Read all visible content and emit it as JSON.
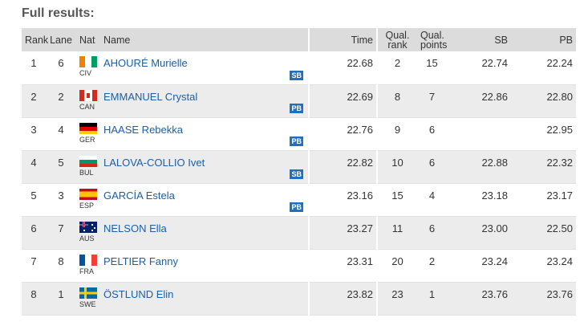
{
  "header": {
    "title": "Full results:"
  },
  "table": {
    "columns": [
      "Rank",
      "Lane",
      "Nat",
      "Name",
      "Time",
      "Qual. rank",
      "Qual. points",
      "SB",
      "PB"
    ],
    "rows": [
      {
        "rank": "1",
        "lane": "6",
        "nat": "CIV",
        "name": "AHOURÉ Murielle",
        "badge": "SB",
        "time": "22.68",
        "qual_rank": "2",
        "qual_points": "15",
        "sb": "22.74",
        "pb": "22.24"
      },
      {
        "rank": "2",
        "lane": "2",
        "nat": "CAN",
        "name": "EMMANUEL Crystal",
        "badge": "PB",
        "time": "22.69",
        "qual_rank": "8",
        "qual_points": "7",
        "sb": "22.86",
        "pb": "22.80"
      },
      {
        "rank": "3",
        "lane": "4",
        "nat": "GER",
        "name": "HAASE Rebekka",
        "badge": "PB",
        "time": "22.76",
        "qual_rank": "9",
        "qual_points": "6",
        "sb": null,
        "pb": "22.95"
      },
      {
        "rank": "4",
        "lane": "5",
        "nat": "BUL",
        "name": "LALOVA-COLLIO Ivet",
        "badge": "SB",
        "time": "22.82",
        "qual_rank": "10",
        "qual_points": "6",
        "sb": "22.88",
        "pb": "22.32"
      },
      {
        "rank": "5",
        "lane": "3",
        "nat": "ESP",
        "name": "GARCÍA Estela",
        "badge": "PB",
        "time": "23.16",
        "qual_rank": "15",
        "qual_points": "4",
        "sb": "23.18",
        "pb": "23.17"
      },
      {
        "rank": "6",
        "lane": "7",
        "nat": "AUS",
        "name": "NELSON Ella",
        "badge": null,
        "time": "23.27",
        "qual_rank": "11",
        "qual_points": "6",
        "sb": "23.00",
        "pb": "22.50"
      },
      {
        "rank": "7",
        "lane": "8",
        "nat": "FRA",
        "name": "PELTIER Fanny",
        "badge": null,
        "time": "23.31",
        "qual_rank": "20",
        "qual_points": "2",
        "sb": "23.24",
        "pb": "23.24"
      },
      {
        "rank": "8",
        "lane": "1",
        "nat": "SWE",
        "name": "ÖSTLUND Elin",
        "badge": null,
        "time": "23.82",
        "qual_rank": "23",
        "qual_points": "1",
        "sb": "23.76",
        "pb": "23.76"
      }
    ]
  }
}
